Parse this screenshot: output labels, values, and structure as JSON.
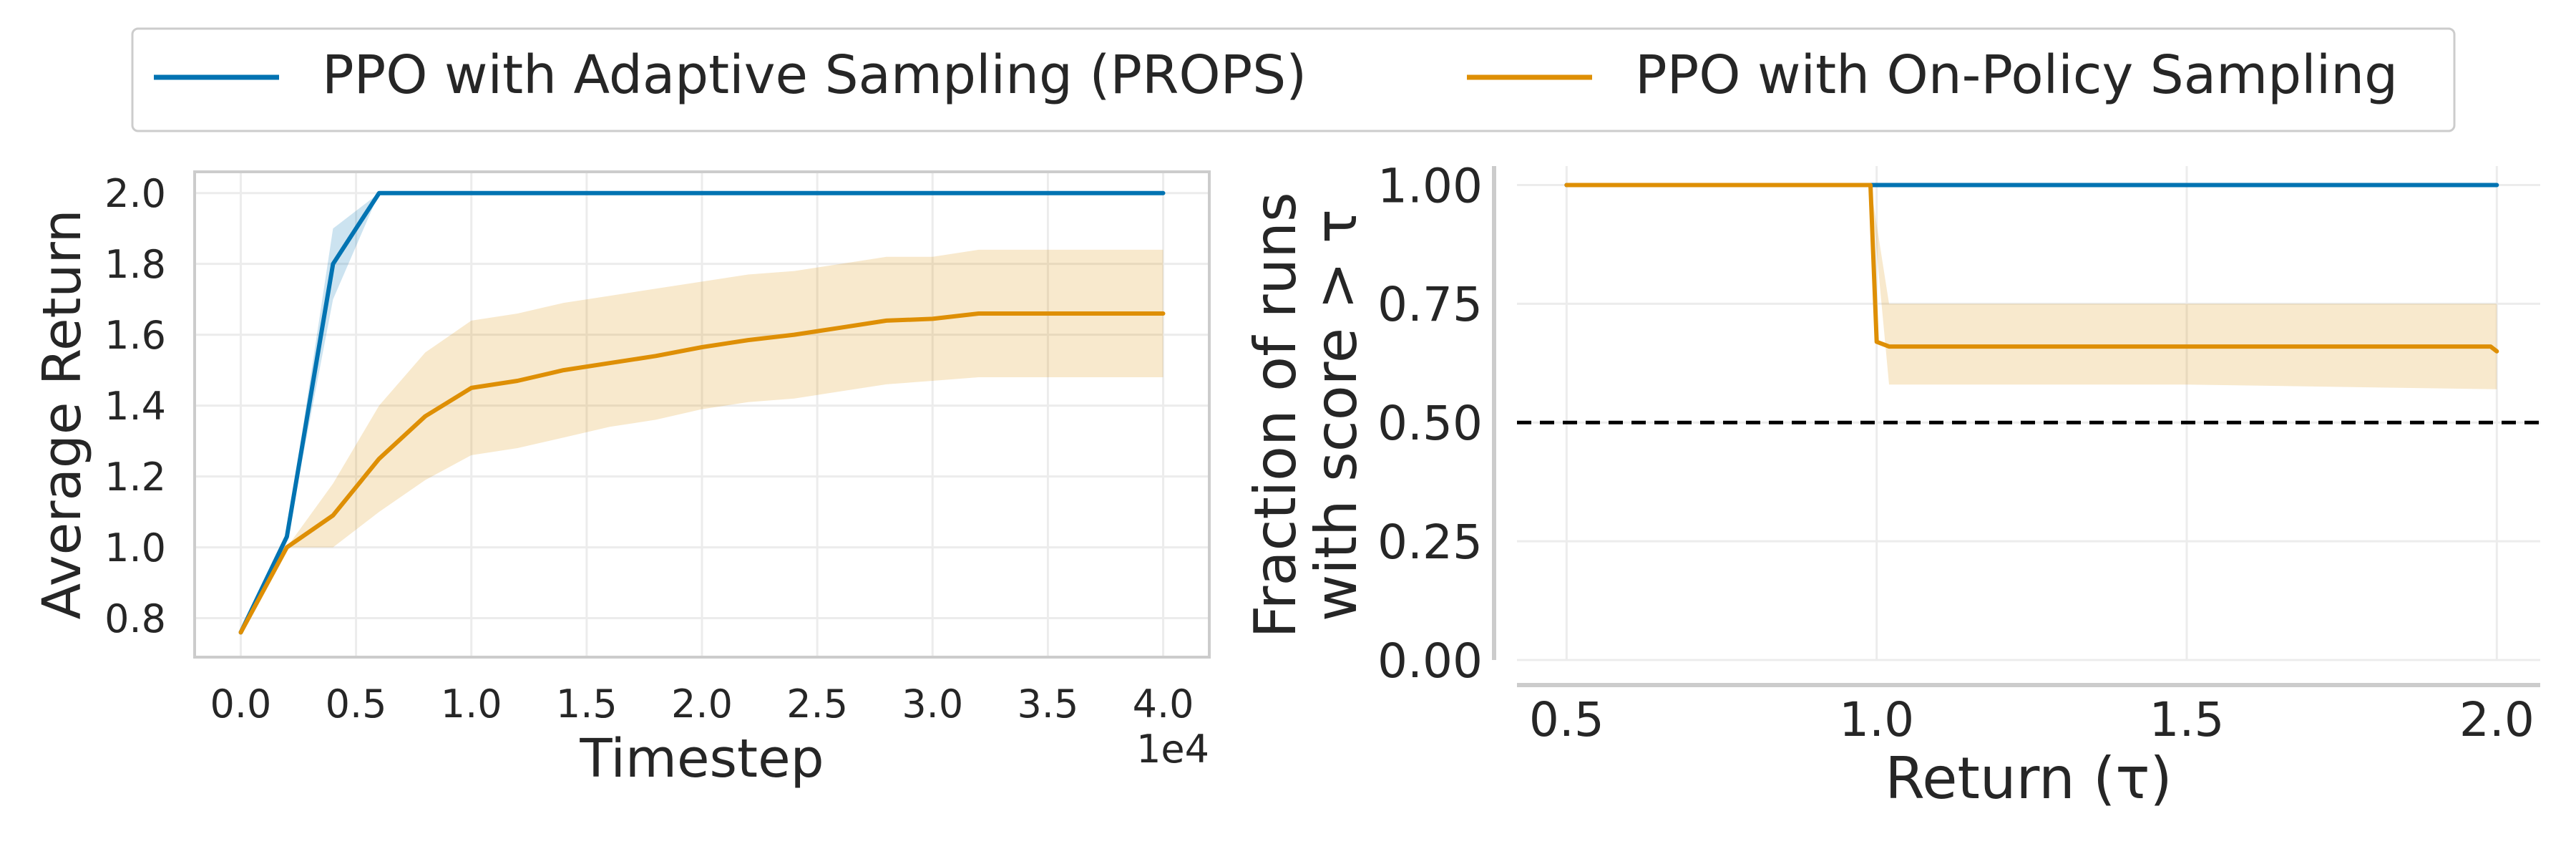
{
  "legend": {
    "items": [
      {
        "label": "PPO with Adaptive Sampling (PROPS)",
        "color": "#0173b2"
      },
      {
        "label": "PPO with On-Policy Sampling",
        "color": "#de8f05"
      }
    ]
  },
  "colors": {
    "props": "#0173b2",
    "onpolicy": "#de8f05",
    "reference": "#000000"
  },
  "chart_data": [
    {
      "type": "line",
      "xlabel": "Timestep",
      "ylabel": "Average Return",
      "x_multiplier_label": "1e4",
      "xlim": [
        -0.2,
        4.2
      ],
      "ylim": [
        0.69,
        2.06
      ],
      "x_ticks": [
        "0.0",
        "0.5",
        "1.0",
        "1.5",
        "2.0",
        "2.5",
        "3.0",
        "3.5",
        "4.0"
      ],
      "y_ticks": [
        "0.8",
        "1.0",
        "1.2",
        "1.4",
        "1.6",
        "1.8",
        "2.0"
      ],
      "grid": true,
      "series": [
        {
          "name": "PPO with Adaptive Sampling (PROPS)",
          "color": "#0173b2",
          "x": [
            0.0,
            0.2,
            0.4,
            0.6,
            0.8,
            1.0,
            1.5,
            2.0,
            2.5,
            3.0,
            3.5,
            4.0
          ],
          "y": [
            0.76,
            1.03,
            1.8,
            2.0,
            2.0,
            2.0,
            2.0,
            2.0,
            2.0,
            2.0,
            2.0,
            2.0
          ],
          "lower": [
            0.76,
            1.02,
            1.7,
            2.0,
            2.0,
            2.0,
            2.0,
            2.0,
            2.0,
            2.0,
            2.0,
            2.0
          ],
          "upper": [
            0.76,
            1.04,
            1.9,
            2.0,
            2.0,
            2.0,
            2.0,
            2.0,
            2.0,
            2.0,
            2.0,
            2.0
          ]
        },
        {
          "name": "PPO with On-Policy Sampling",
          "color": "#de8f05",
          "x": [
            0.0,
            0.2,
            0.4,
            0.6,
            0.8,
            1.0,
            1.2,
            1.4,
            1.6,
            1.8,
            2.0,
            2.2,
            2.4,
            2.6,
            2.8,
            3.0,
            3.2,
            3.4,
            3.6,
            3.8,
            4.0
          ],
          "y": [
            0.76,
            1.0,
            1.09,
            1.25,
            1.37,
            1.45,
            1.47,
            1.5,
            1.52,
            1.54,
            1.565,
            1.585,
            1.6,
            1.62,
            1.64,
            1.645,
            1.66,
            1.66,
            1.66,
            1.66,
            1.66
          ],
          "lower": [
            0.76,
            1.0,
            1.0,
            1.1,
            1.19,
            1.26,
            1.28,
            1.31,
            1.34,
            1.36,
            1.39,
            1.41,
            1.42,
            1.44,
            1.46,
            1.47,
            1.48,
            1.48,
            1.48,
            1.48,
            1.48
          ],
          "upper": [
            0.76,
            1.0,
            1.18,
            1.4,
            1.55,
            1.64,
            1.66,
            1.69,
            1.71,
            1.73,
            1.75,
            1.77,
            1.78,
            1.8,
            1.82,
            1.82,
            1.84,
            1.84,
            1.84,
            1.84,
            1.84
          ]
        }
      ]
    },
    {
      "type": "line",
      "xlabel": "Return (τ)",
      "ylabel_lines": [
        "Fraction of runs",
        "with score > τ"
      ],
      "xlim": [
        0.42,
        2.07
      ],
      "ylim": [
        0.0,
        1.04
      ],
      "x_ticks": [
        "0.5",
        "1.0",
        "1.5",
        "2.0"
      ],
      "y_ticks": [
        "0.00",
        "0.25",
        "0.50",
        "0.75",
        "1.00"
      ],
      "grid": true,
      "reference_line": 0.5,
      "series": [
        {
          "name": "PPO with Adaptive Sampling (PROPS)",
          "color": "#0173b2",
          "x": [
            0.5,
            2.0
          ],
          "y": [
            1.0,
            1.0
          ]
        },
        {
          "name": "PPO with On-Policy Sampling",
          "color": "#de8f05",
          "x": [
            0.5,
            0.99,
            1.0,
            1.02,
            1.5,
            1.99,
            2.0
          ],
          "y": [
            1.0,
            1.0,
            0.67,
            0.66,
            0.66,
            0.66,
            0.65
          ],
          "band_x": [
            0.99,
            1.02,
            1.5,
            2.0
          ],
          "band_lower": [
            1.0,
            0.58,
            0.58,
            0.57
          ],
          "band_upper": [
            1.0,
            0.75,
            0.75,
            0.75
          ]
        }
      ]
    }
  ]
}
